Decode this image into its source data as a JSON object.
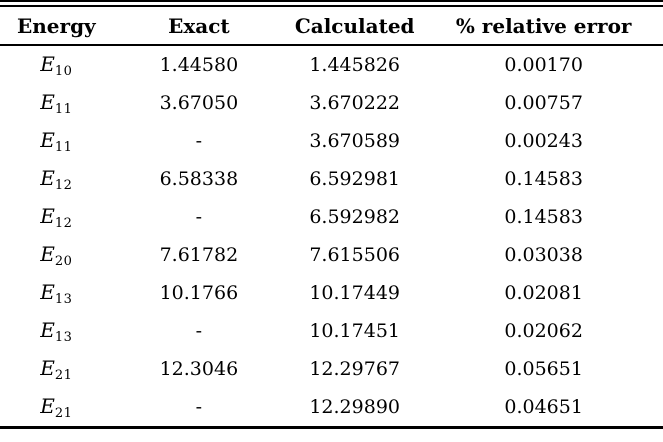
{
  "table": {
    "headers": [
      {
        "label": "Energy"
      },
      {
        "label": "Exact"
      },
      {
        "label": "Calculated"
      },
      {
        "label": "% relative error"
      }
    ],
    "rows": [
      {
        "energy_symbol": "E",
        "energy_subscript": "10",
        "exact": "1.44580",
        "calculated": "1.445826",
        "relative_error": "0.00170"
      },
      {
        "energy_symbol": "E",
        "energy_subscript": "11",
        "exact": "3.67050",
        "calculated": "3.670222",
        "relative_error": "0.00757"
      },
      {
        "energy_symbol": "E",
        "energy_subscript": "11",
        "exact": "-",
        "calculated": "3.670589",
        "relative_error": "0.00243"
      },
      {
        "energy_symbol": "E",
        "energy_subscript": "12",
        "exact": "6.58338",
        "calculated": "6.592981",
        "relative_error": "0.14583"
      },
      {
        "energy_symbol": "E",
        "energy_subscript": "12",
        "exact": "-",
        "calculated": "6.592982",
        "relative_error": "0.14583"
      },
      {
        "energy_symbol": "E",
        "energy_subscript": "20",
        "exact": "7.61782",
        "calculated": "7.615506",
        "relative_error": "0.03038"
      },
      {
        "energy_symbol": "E",
        "energy_subscript": "13",
        "exact": "10.1766",
        "calculated": "10.17449",
        "relative_error": "0.02081"
      },
      {
        "energy_symbol": "E",
        "energy_subscript": "13",
        "exact": "-",
        "calculated": "10.17451",
        "relative_error": "0.02062"
      },
      {
        "energy_symbol": "E",
        "energy_subscript": "21",
        "exact": "12.3046",
        "calculated": "12.29767",
        "relative_error": "0.05651"
      },
      {
        "energy_symbol": "E",
        "energy_subscript": "21",
        "exact": "-",
        "calculated": "12.29890",
        "relative_error": "0.04651"
      }
    ],
    "colors": {
      "text": "#000000",
      "background": "#ffffff",
      "rule": "#000000"
    }
  }
}
